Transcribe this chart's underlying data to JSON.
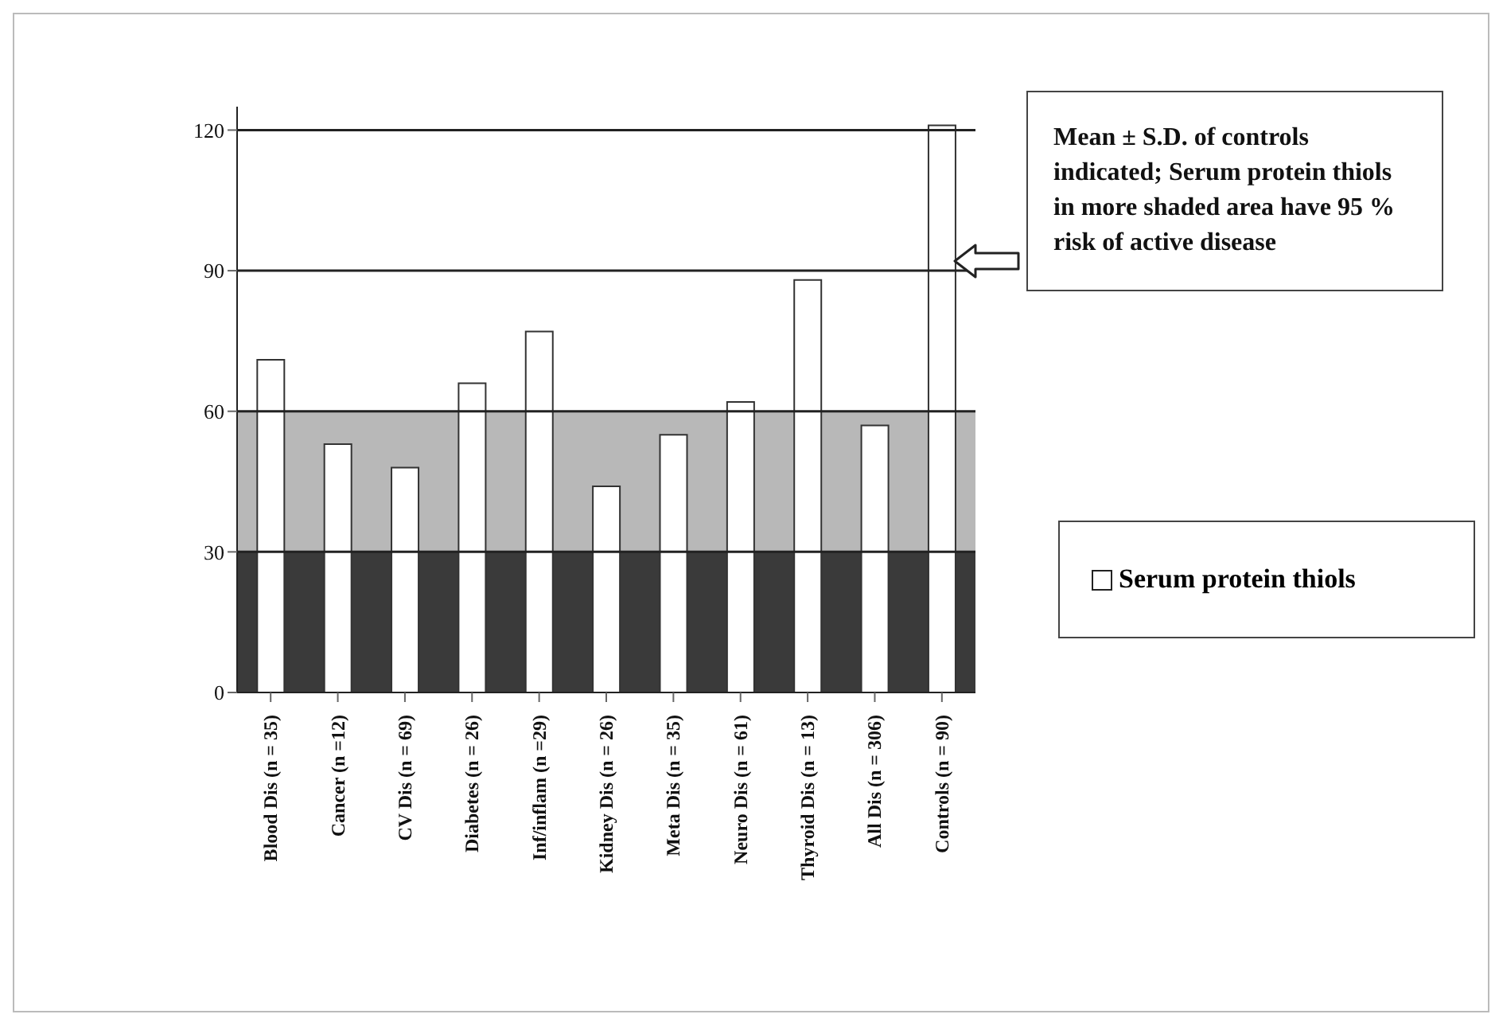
{
  "chart_data": {
    "type": "bar",
    "categories": [
      "Blood Dis (n = 35)",
      "Cancer (n =12)",
      "CV Dis (n = 69)",
      "Diabetes (n = 26)",
      "Inf/inflam (n =29)",
      "Kidney Dis (n = 26)",
      "Meta Dis (n = 35)",
      "Neuro Dis (n = 61)",
      "Thyroid Dis (n = 13)",
      "All Dis (n = 306)",
      "Controls (n = 90)"
    ],
    "series": [
      {
        "name": "Serum protein thiols",
        "color": "#ffffff",
        "values": [
          71,
          53,
          48,
          66,
          77,
          44,
          55,
          62,
          88,
          57,
          121
        ]
      }
    ],
    "ylim": [
      0,
      125
    ],
    "yticks": [
      0,
      30,
      60,
      90,
      120
    ],
    "legend": "right",
    "ref_lines": [
      {
        "axis": "y",
        "value": 120,
        "color": "#222222"
      },
      {
        "axis": "y",
        "value": 90,
        "color": "#222222"
      },
      {
        "axis": "y",
        "value": 60,
        "color": "#222222"
      },
      {
        "axis": "y",
        "value": 30,
        "color": "#222222"
      }
    ],
    "bands": [
      {
        "axis": "y",
        "from": 30,
        "to": 60,
        "color": "#b8b8b8"
      },
      {
        "axis": "y",
        "from": 0,
        "to": 30,
        "color": "#3a3a3a"
      }
    ],
    "annotations": [
      "Mean ± S.D. of controls indicated; Serum protein thiols in more shaded area have 95 % risk of active disease"
    ]
  }
}
